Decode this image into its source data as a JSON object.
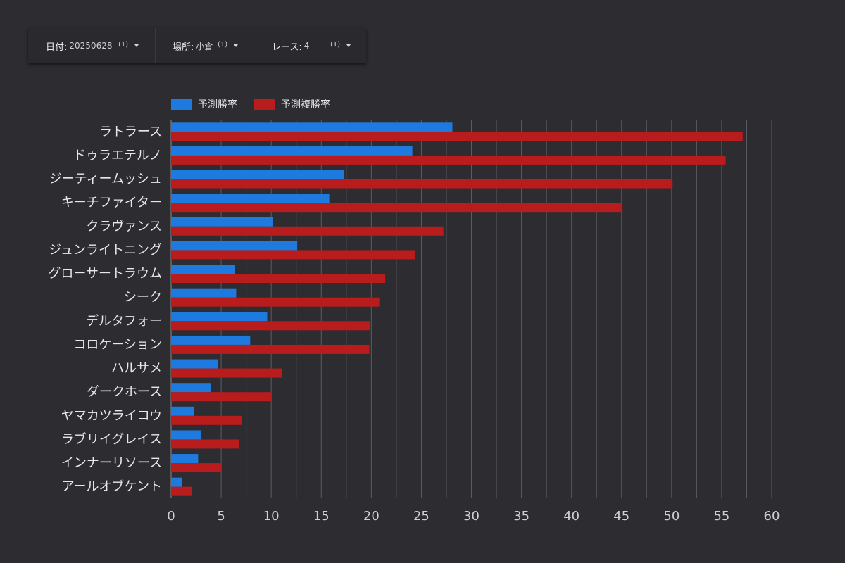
{
  "filters": [
    {
      "label": "日付:",
      "value": "20250628",
      "count": "(1)",
      "icon": "caret-down-icon"
    },
    {
      "label": "場所:",
      "value": "小倉",
      "count": "(1)",
      "icon": "caret-down-icon"
    },
    {
      "label": "レース:",
      "value": "4",
      "count": "(1)",
      "icon": "caret-down-icon"
    }
  ],
  "colors": {
    "background": "#2d2c31",
    "series_win": "#1f7ae0",
    "series_place": "#b81c1c",
    "grid": "#5c5b61"
  },
  "chart_data": {
    "type": "bar",
    "orientation": "horizontal",
    "categories": [
      "ラトラース",
      "ドゥラエテルノ",
      "ジーティームッシュ",
      "キーチファイター",
      "クラヴァンス",
      "ジュンライトニング",
      "グローサートラウム",
      "シーク",
      "デルタフォー",
      "コロケーション",
      "ハルサメ",
      "ダークホース",
      "ヤマカツライコウ",
      "ラブリイグレイス",
      "インナーリソース",
      "アールオブケント"
    ],
    "series": [
      {
        "name": "予測勝率",
        "color": "#1f7ae0",
        "values": [
          28.1,
          24.1,
          17.3,
          15.8,
          10.2,
          12.6,
          6.4,
          6.5,
          9.6,
          7.9,
          4.7,
          4.0,
          2.3,
          3.0,
          2.7,
          1.1
        ]
      },
      {
        "name": "予測複勝率",
        "color": "#b81c1c",
        "values": [
          57.1,
          55.4,
          50.1,
          45.1,
          27.2,
          24.4,
          21.4,
          20.8,
          19.9,
          19.8,
          11.1,
          10.0,
          7.1,
          6.8,
          5.0,
          2.1
        ]
      }
    ],
    "xlim": [
      0,
      60
    ],
    "xticks": [
      0,
      5,
      10,
      15,
      20,
      25,
      30,
      35,
      40,
      45,
      50,
      55,
      60
    ],
    "xlabel": "",
    "ylabel": "",
    "grid": "vertical",
    "legend": "top-left"
  }
}
